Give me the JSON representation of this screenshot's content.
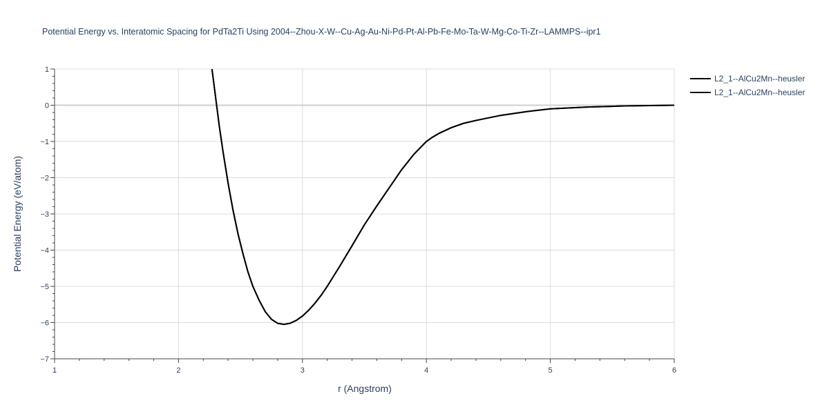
{
  "chart_data": {
    "type": "line",
    "title": "Potential Energy vs. Interatomic Spacing for PdTa2Ti Using 2004--Zhou-X-W--Cu-Ag-Au-Ni-Pd-Pt-Al-Pb-Fe-Mo-Ta-W-Mg-Co-Ti-Zr--LAMMPS--ipr1",
    "xlabel": "r (Angstrom)",
    "ylabel": "Potential Energy (eV/atom)",
    "xlim": [
      1,
      6
    ],
    "ylim": [
      -7,
      1
    ],
    "x_ticks": [
      1,
      2,
      3,
      4,
      5,
      6
    ],
    "x_tick_labels": [
      "1",
      "2",
      "3",
      "4",
      "5",
      "6"
    ],
    "y_ticks": [
      1,
      0,
      -1,
      -2,
      -3,
      -4,
      -5,
      -6,
      -7
    ],
    "y_tick_labels": [
      "1",
      "0",
      "−1",
      "−2",
      "−3",
      "−4",
      "−5",
      "−6",
      "−7"
    ],
    "grid": true,
    "legend_position": "top-right",
    "line_color": "#000000",
    "series": [
      {
        "name": "L2_1--AlCu2Mn--heusler",
        "x": [
          2.27,
          2.3,
          2.33,
          2.36,
          2.4,
          2.44,
          2.48,
          2.52,
          2.56,
          2.6,
          2.65,
          2.7,
          2.75,
          2.8,
          2.85,
          2.9,
          2.95,
          3.0,
          3.05,
          3.1,
          3.15,
          3.2,
          3.3,
          3.4,
          3.5,
          3.6,
          3.7,
          3.8,
          3.9,
          4.0,
          4.05,
          4.1,
          4.2,
          4.3,
          4.4,
          4.6,
          4.8,
          5.0,
          5.3,
          5.6,
          6.0
        ],
        "y": [
          1.0,
          0.2,
          -0.6,
          -1.3,
          -2.15,
          -2.9,
          -3.55,
          -4.1,
          -4.6,
          -5.0,
          -5.38,
          -5.7,
          -5.91,
          -6.02,
          -6.05,
          -6.02,
          -5.94,
          -5.82,
          -5.66,
          -5.47,
          -5.25,
          -5.0,
          -4.45,
          -3.88,
          -3.3,
          -2.78,
          -2.28,
          -1.78,
          -1.35,
          -1.0,
          -0.88,
          -0.78,
          -0.62,
          -0.5,
          -0.42,
          -0.28,
          -0.18,
          -0.1,
          -0.05,
          -0.02,
          0.0
        ]
      },
      {
        "name": "L2_1--AlCu2Mn--heusler",
        "x": [
          2.27,
          2.3,
          2.33,
          2.36,
          2.4,
          2.44,
          2.48,
          2.52,
          2.56,
          2.6,
          2.65,
          2.7,
          2.75,
          2.8,
          2.85,
          2.9,
          2.95,
          3.0,
          3.05,
          3.1,
          3.15,
          3.2,
          3.3,
          3.4,
          3.5,
          3.6,
          3.7,
          3.8,
          3.9,
          4.0,
          4.05,
          4.1,
          4.2,
          4.3,
          4.4,
          4.6,
          4.8,
          5.0,
          5.3,
          5.6,
          6.0
        ],
        "y": [
          1.0,
          0.2,
          -0.6,
          -1.3,
          -2.15,
          -2.9,
          -3.55,
          -4.1,
          -4.6,
          -5.0,
          -5.38,
          -5.7,
          -5.91,
          -6.02,
          -6.05,
          -6.02,
          -5.94,
          -5.82,
          -5.66,
          -5.47,
          -5.25,
          -5.0,
          -4.45,
          -3.88,
          -3.3,
          -2.78,
          -2.28,
          -1.78,
          -1.35,
          -1.0,
          -0.88,
          -0.78,
          -0.62,
          -0.5,
          -0.42,
          -0.28,
          -0.18,
          -0.1,
          -0.05,
          -0.02,
          0.0
        ]
      }
    ]
  }
}
